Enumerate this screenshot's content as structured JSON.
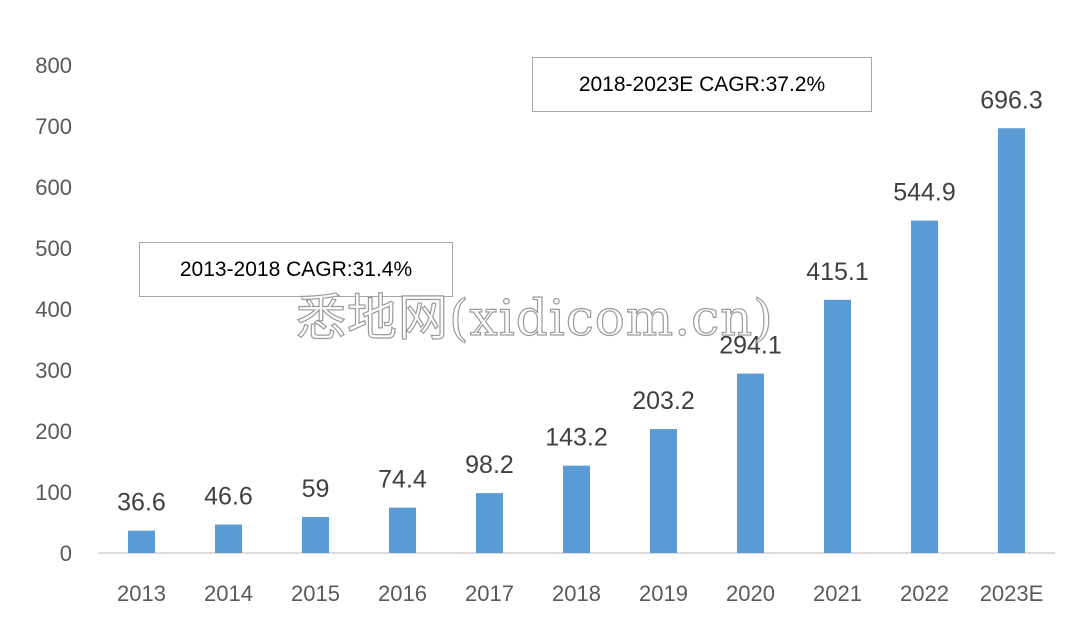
{
  "chart_data": {
    "type": "bar",
    "categories": [
      "2013",
      "2014",
      "2015",
      "2016",
      "2017",
      "2018",
      "2019",
      "2020",
      "2021",
      "2022",
      "2023E"
    ],
    "values": [
      36.6,
      46.6,
      59,
      74.4,
      98.2,
      143.2,
      203.2,
      294.1,
      415.1,
      544.9,
      696.3
    ],
    "data_labels": [
      "36.6",
      "46.6",
      "59",
      "74.4",
      "98.2",
      "143.2",
      "203.2",
      "294.1",
      "415.1",
      "544.9",
      "696.3"
    ],
    "ylim": [
      0,
      800
    ],
    "yticks": [
      0,
      100,
      200,
      300,
      400,
      500,
      600,
      700,
      800
    ],
    "title": "",
    "xlabel": "",
    "ylabel": "",
    "grid": false,
    "bar_color": "#5b9bd5",
    "annotations": [
      "2013-2018 CAGR:31.4%",
      "2018-2023E CAGR:37.2%"
    ]
  },
  "watermark": "悉地网(xidicom.cn)"
}
